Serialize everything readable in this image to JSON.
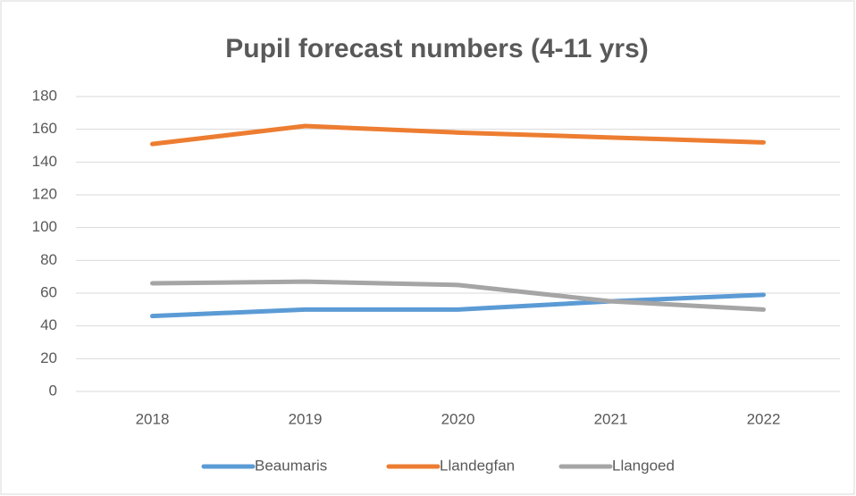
{
  "chart_data": {
    "type": "line",
    "title": "Pupil forecast numbers (4-11 yrs)",
    "categories": [
      "2018",
      "2019",
      "2020",
      "2021",
      "2022"
    ],
    "series": [
      {
        "name": "Beaumaris",
        "color": "#5b9bd5",
        "values": [
          46,
          50,
          50,
          55,
          59
        ]
      },
      {
        "name": "Llandegfan",
        "color": "#ed7d31",
        "values": [
          151,
          162,
          158,
          155,
          152
        ]
      },
      {
        "name": "Llangoed",
        "color": "#a5a5a5",
        "values": [
          66,
          67,
          65,
          55,
          50
        ]
      }
    ],
    "ylim": [
      0,
      180
    ],
    "yticks": [
      0,
      20,
      40,
      60,
      80,
      100,
      120,
      140,
      160,
      180
    ],
    "grid": true,
    "legend": "bottom"
  }
}
